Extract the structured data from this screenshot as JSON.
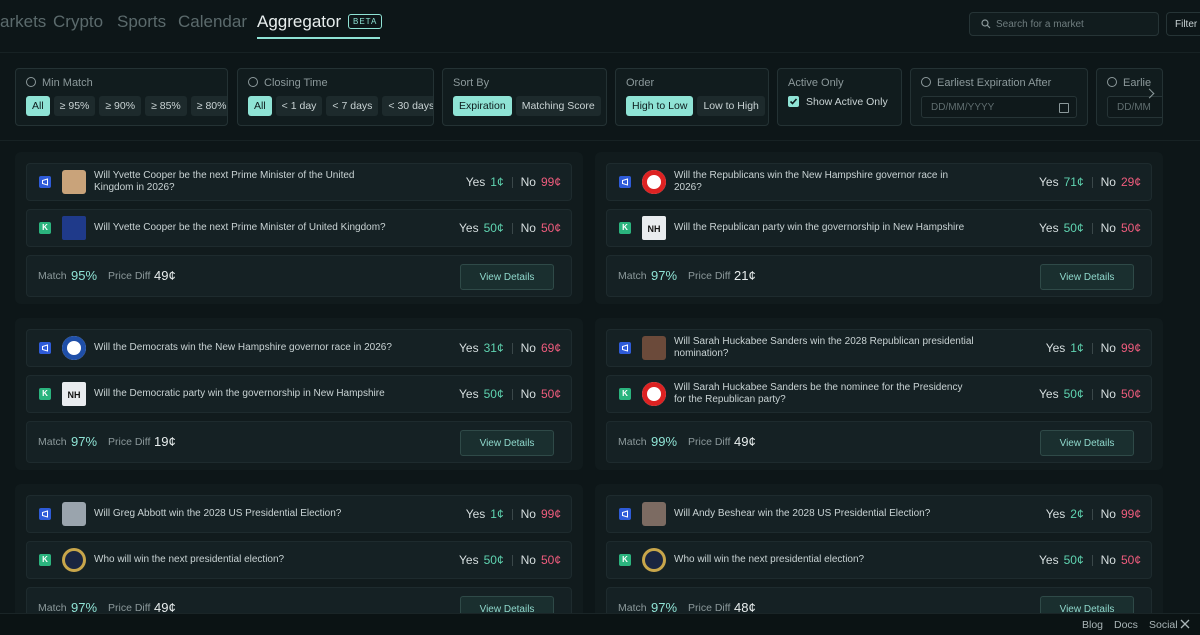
{
  "nav": {
    "links": [
      "arkets",
      "Crypto",
      "Sports",
      "Calendar",
      "Aggregator"
    ],
    "badge": "BETA",
    "search_placeholder": "Search for a market",
    "filter_button": "Filter"
  },
  "filters": [
    {
      "label": "Min Match",
      "options": [
        "All",
        "≥ 95%",
        "≥ 90%",
        "≥ 85%",
        "≥ 80%"
      ],
      "active": 0
    },
    {
      "label": "Closing Time",
      "options": [
        "All",
        "< 1 day",
        "< 7 days",
        "< 30 days"
      ],
      "active": 0
    },
    {
      "label": "Sort By",
      "options": [
        "Expiration",
        "Matching Score"
      ],
      "active": 0
    },
    {
      "label": "Order",
      "options": [
        "High to Low",
        "Low to High"
      ],
      "active": 0
    },
    {
      "label": "Active Only",
      "checkbox": "Show Active Only"
    },
    {
      "label": "Earliest Expiration After",
      "input": "DD/MM/YYYY"
    },
    {
      "label": "Earlie",
      "input": "DD/MM"
    }
  ],
  "labels": {
    "yes": "Yes",
    "no": "No",
    "match": "Match",
    "price_diff": "Price Diff",
    "view": "View Details",
    "kalshi": "K"
  },
  "cards": [
    {
      "markets": [
        {
          "question": "Will Yvette Cooper be the next Prime Minister of the United Kingdom in 2026?",
          "yes": "1¢",
          "no": "99¢"
        },
        {
          "question": "Will Yvette Cooper be the next Prime Minister of United Kingdom?",
          "yes": "50¢",
          "no": "50¢"
        }
      ],
      "match": "95%",
      "price_diff": "49¢"
    },
    {
      "markets": [
        {
          "question": "Will the Republicans win the New Hampshire governor race in 2026?",
          "yes": "71¢",
          "no": "29¢"
        },
        {
          "question": "Will the Republican party win the governorship in New Hampshire",
          "yes": "50¢",
          "no": "50¢",
          "icon_text": "NH"
        }
      ],
      "match": "97%",
      "price_diff": "21¢"
    },
    {
      "markets": [
        {
          "question": "Will the Democrats win the New Hampshire governor race in 2026?",
          "yes": "31¢",
          "no": "69¢"
        },
        {
          "question": "Will the Democratic party win the governorship in New Hampshire",
          "yes": "50¢",
          "no": "50¢",
          "icon_text": "NH"
        }
      ],
      "match": "97%",
      "price_diff": "19¢"
    },
    {
      "markets": [
        {
          "question": "Will Sarah Huckabee Sanders win the 2028 Republican presidential nomination?",
          "yes": "1¢",
          "no": "99¢"
        },
        {
          "question": "Will Sarah Huckabee Sanders be the nominee for the Presidency for the Republican party?",
          "yes": "50¢",
          "no": "50¢"
        }
      ],
      "match": "99%",
      "price_diff": "49¢"
    },
    {
      "markets": [
        {
          "question": "Will Greg Abbott win the 2028 US Presidential Election?",
          "yes": "1¢",
          "no": "99¢"
        },
        {
          "question": "Who will win the next presidential election?",
          "yes": "50¢",
          "no": "50¢"
        }
      ],
      "match": "97%",
      "price_diff": "49¢"
    },
    {
      "markets": [
        {
          "question": "Will Andy Beshear win the 2028 US Presidential Election?",
          "yes": "2¢",
          "no": "99¢"
        },
        {
          "question": "Who will win the next presidential election?",
          "yes": "50¢",
          "no": "50¢"
        }
      ],
      "match": "97%",
      "price_diff": "48¢"
    }
  ],
  "footer": {
    "links": [
      "Blog",
      "Docs",
      "Social"
    ]
  }
}
